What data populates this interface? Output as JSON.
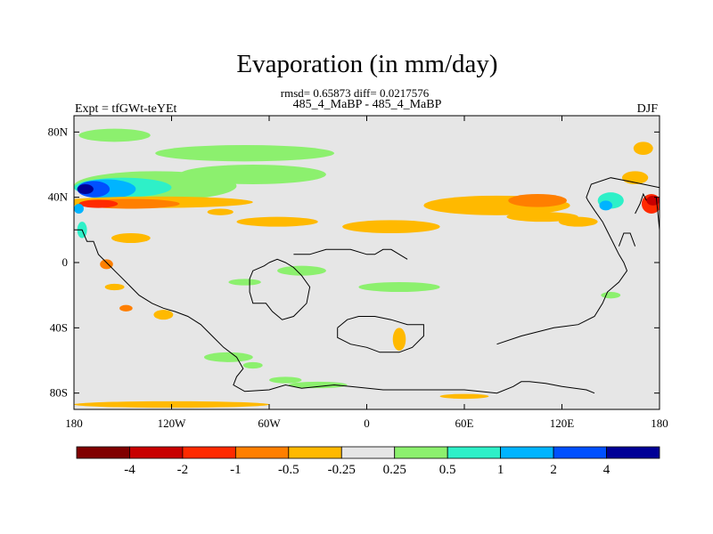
{
  "chart_data": {
    "type": "heatmap",
    "title": "Evaporation (in mm/day)",
    "stats_line": "rmsd= 0.65873 diff= 0.0217576",
    "subtitle_left": "Expt = tfGWt-teYEt",
    "subtitle_center": "485_4_MaBP - 485_4_MaBP",
    "subtitle_right": "DJF",
    "xlim": [
      -180,
      180
    ],
    "ylim": [
      -90,
      90
    ],
    "x_ticks": [
      {
        "value": -180,
        "label": "180"
      },
      {
        "value": -120,
        "label": "120W"
      },
      {
        "value": -60,
        "label": "60W"
      },
      {
        "value": 0,
        "label": "0"
      },
      {
        "value": 60,
        "label": "60E"
      },
      {
        "value": 120,
        "label": "120E"
      },
      {
        "value": 180,
        "label": "180"
      }
    ],
    "y_ticks": [
      {
        "value": 80,
        "label": "80N"
      },
      {
        "value": 40,
        "label": "40N"
      },
      {
        "value": 0,
        "label": "0"
      },
      {
        "value": -40,
        "label": "40S"
      },
      {
        "value": -80,
        "label": "80S"
      }
    ],
    "colorbar": {
      "colors": [
        "#800000",
        "#c80000",
        "#ff2a00",
        "#ff7f00",
        "#ffb900",
        "#e6e6e6",
        "#8cf06e",
        "#2ef0c8",
        "#00b4ff",
        "#0050ff",
        "#000096"
      ],
      "labels": [
        "-4",
        "-2",
        "-1",
        "-0.5",
        "-0.25",
        "0.25",
        "0.5",
        "1",
        "2",
        "4"
      ]
    },
    "background_color": "#e6e6e6",
    "anomaly_regions": [
      {
        "level": 6,
        "lon": -155,
        "lat": 78,
        "rlon": 22,
        "rlat": 4
      },
      {
        "level": 6,
        "lon": -75,
        "lat": 67,
        "rlon": 55,
        "rlat": 5
      },
      {
        "level": 6,
        "lon": -70,
        "lat": 54,
        "rlon": 45,
        "rlat": 6
      },
      {
        "level": 6,
        "lon": -130,
        "lat": 47,
        "rlon": 50,
        "rlat": 9
      },
      {
        "level": 7,
        "lon": -150,
        "lat": 46,
        "rlon": 30,
        "rlat": 6
      },
      {
        "level": 8,
        "lon": -160,
        "lat": 45,
        "rlon": 18,
        "rlat": 6
      },
      {
        "level": 9,
        "lon": -168,
        "lat": 45,
        "rlon": 10,
        "rlat": 5
      },
      {
        "level": 10,
        "lon": -173,
        "lat": 45,
        "rlon": 5,
        "rlat": 3
      },
      {
        "level": 4,
        "lon": -130,
        "lat": 37,
        "rlon": 60,
        "rlat": 3.5
      },
      {
        "level": 3,
        "lon": -145,
        "lat": 36,
        "rlon": 30,
        "rlat": 3
      },
      {
        "level": 2,
        "lon": -165,
        "lat": 36,
        "rlon": 12,
        "rlat": 2.5
      },
      {
        "level": 4,
        "lon": -90,
        "lat": 31,
        "rlon": 8,
        "rlat": 2
      },
      {
        "level": 4,
        "lon": -55,
        "lat": 25,
        "rlon": 25,
        "rlat": 3
      },
      {
        "level": 4,
        "lon": -145,
        "lat": 15,
        "rlon": 12,
        "rlat": 3
      },
      {
        "level": 4,
        "lon": 15,
        "lat": 22,
        "rlon": 30,
        "rlat": 4
      },
      {
        "level": 4,
        "lon": 80,
        "lat": 35,
        "rlon": 45,
        "rlat": 6
      },
      {
        "level": 3,
        "lon": 105,
        "lat": 38,
        "rlon": 18,
        "rlat": 4
      },
      {
        "level": 4,
        "lon": 108,
        "lat": 28,
        "rlon": 22,
        "rlat": 3
      },
      {
        "level": 4,
        "lon": 130,
        "lat": 25,
        "rlon": 12,
        "rlat": 3
      },
      {
        "level": 4,
        "lon": 170,
        "lat": 70,
        "rlon": 6,
        "rlat": 4
      },
      {
        "level": 4,
        "lon": 165,
        "lat": 52,
        "rlon": 8,
        "rlat": 4
      },
      {
        "level": 7,
        "lon": 150,
        "lat": 38,
        "rlon": 8,
        "rlat": 5
      },
      {
        "level": 8,
        "lon": 147,
        "lat": 35,
        "rlon": 4,
        "rlat": 3
      },
      {
        "level": 2,
        "lon": 175,
        "lat": 36,
        "rlon": 6,
        "rlat": 6
      },
      {
        "level": 1,
        "lon": 176,
        "lat": 38,
        "rlon": 4,
        "rlat": 3
      },
      {
        "level": 8,
        "lon": -177,
        "lat": 33,
        "rlon": 3,
        "rlat": 3
      },
      {
        "level": 7,
        "lon": -175,
        "lat": 20,
        "rlon": 3,
        "rlat": 5
      },
      {
        "level": 3,
        "lon": -160,
        "lat": -1,
        "rlon": 4,
        "rlat": 3
      },
      {
        "level": 4,
        "lon": -155,
        "lat": -15,
        "rlon": 6,
        "rlat": 2
      },
      {
        "level": 3,
        "lon": -148,
        "lat": -28,
        "rlon": 4,
        "rlat": 2
      },
      {
        "level": 4,
        "lon": -125,
        "lat": -32,
        "rlon": 6,
        "rlat": 3
      },
      {
        "level": 6,
        "lon": -75,
        "lat": -12,
        "rlon": 10,
        "rlat": 2
      },
      {
        "level": 6,
        "lon": -40,
        "lat": -5,
        "rlon": 15,
        "rlat": 3
      },
      {
        "level": 6,
        "lon": 20,
        "lat": -15,
        "rlon": 25,
        "rlat": 3
      },
      {
        "level": 4,
        "lon": 20,
        "lat": -47,
        "rlon": 4,
        "rlat": 7
      },
      {
        "level": 6,
        "lon": -85,
        "lat": -58,
        "rlon": 15,
        "rlat": 3
      },
      {
        "level": 6,
        "lon": -70,
        "lat": -63,
        "rlon": 6,
        "rlat": 2
      },
      {
        "level": 6,
        "lon": -50,
        "lat": -72,
        "rlon": 10,
        "rlat": 2
      },
      {
        "level": 6,
        "lon": -30,
        "lat": -75,
        "rlon": 18,
        "rlat": 2
      },
      {
        "level": 4,
        "lon": -120,
        "lat": -87,
        "rlon": 60,
        "rlat": 2
      },
      {
        "level": 4,
        "lon": 60,
        "lat": -82,
        "rlon": 15,
        "rlat": 1.5
      },
      {
        "level": 6,
        "lon": 150,
        "lat": -20,
        "rlon": 6,
        "rlat": 2
      }
    ],
    "coastlines": [
      [
        [
          -180,
          20
        ],
        [
          -175,
          20
        ],
        [
          -172,
          13
        ],
        [
          -168,
          13
        ],
        [
          -165,
          5
        ],
        [
          -160,
          0
        ],
        [
          -155,
          -5
        ],
        [
          -150,
          -10
        ],
        [
          -145,
          -15
        ],
        [
          -140,
          -20
        ],
        [
          -132,
          -25
        ],
        [
          -125,
          -28
        ],
        [
          -118,
          -30
        ],
        [
          -110,
          -33
        ],
        [
          -102,
          -38
        ],
        [
          -95,
          -45
        ],
        [
          -88,
          -52
        ],
        [
          -80,
          -58
        ],
        [
          -76,
          -65
        ],
        [
          -80,
          -70
        ],
        [
          -82,
          -75
        ],
        [
          -75,
          -79
        ],
        [
          -60,
          -78
        ],
        [
          -50,
          -75
        ],
        [
          -40,
          -77
        ],
        [
          -20,
          -75
        ],
        [
          -10,
          -76
        ],
        [
          10,
          -78
        ],
        [
          30,
          -78
        ],
        [
          60,
          -78
        ],
        [
          80,
          -80
        ],
        [
          90,
          -76
        ],
        [
          95,
          -73
        ],
        [
          100,
          -73
        ],
        [
          110,
          -74
        ],
        [
          120,
          -76
        ],
        [
          135,
          -78
        ],
        [
          140,
          -80
        ]
      ],
      [
        [
          -60,
          0
        ],
        [
          -55,
          2
        ],
        [
          -50,
          0
        ],
        [
          -45,
          -3
        ],
        [
          -40,
          -8
        ],
        [
          -35,
          -15
        ],
        [
          -37,
          -25
        ],
        [
          -42,
          -30
        ],
        [
          -45,
          -33
        ],
        [
          -52,
          -35
        ],
        [
          -58,
          -30
        ],
        [
          -62,
          -25
        ],
        [
          -70,
          -25
        ],
        [
          -72,
          -18
        ],
        [
          -72,
          -10
        ],
        [
          -70,
          -5
        ],
        [
          -63,
          -2
        ],
        [
          -60,
          0
        ]
      ],
      [
        [
          -45,
          5
        ],
        [
          -35,
          5
        ],
        [
          -25,
          8
        ],
        [
          -10,
          8
        ],
        [
          0,
          5
        ],
        [
          5,
          5
        ],
        [
          10,
          8
        ],
        [
          15,
          8
        ],
        [
          20,
          5
        ],
        [
          25,
          2
        ]
      ],
      [
        [
          -18,
          -40
        ],
        [
          -12,
          -35
        ],
        [
          -5,
          -33
        ],
        [
          5,
          -33
        ],
        [
          15,
          -35
        ],
        [
          25,
          -38
        ],
        [
          35,
          -38
        ],
        [
          35,
          -45
        ],
        [
          28,
          -52
        ],
        [
          20,
          -55
        ],
        [
          8,
          -55
        ],
        [
          0,
          -52
        ],
        [
          -10,
          -50
        ],
        [
          -18,
          -46
        ],
        [
          -18,
          -40
        ]
      ],
      [
        [
          80,
          -50
        ],
        [
          95,
          -45
        ],
        [
          115,
          -40
        ],
        [
          130,
          -38
        ],
        [
          140,
          -33
        ],
        [
          145,
          -25
        ],
        [
          148,
          -18
        ],
        [
          155,
          -12
        ],
        [
          160,
          -5
        ],
        [
          158,
          0
        ],
        [
          155,
          5
        ],
        [
          150,
          15
        ],
        [
          145,
          25
        ],
        [
          140,
          32
        ],
        [
          136,
          38
        ],
        [
          135,
          40
        ],
        [
          138,
          48
        ],
        [
          150,
          52
        ],
        [
          160,
          50
        ],
        [
          170,
          48
        ],
        [
          180,
          46
        ]
      ],
      [
        [
          155,
          10
        ],
        [
          158,
          18
        ],
        [
          162,
          18
        ],
        [
          165,
          10
        ]
      ],
      [
        [
          165,
          30
        ],
        [
          168,
          36
        ],
        [
          170,
          42
        ],
        [
          172,
          38
        ]
      ],
      [
        [
          178,
          40
        ],
        [
          180,
          20
        ]
      ]
    ]
  }
}
